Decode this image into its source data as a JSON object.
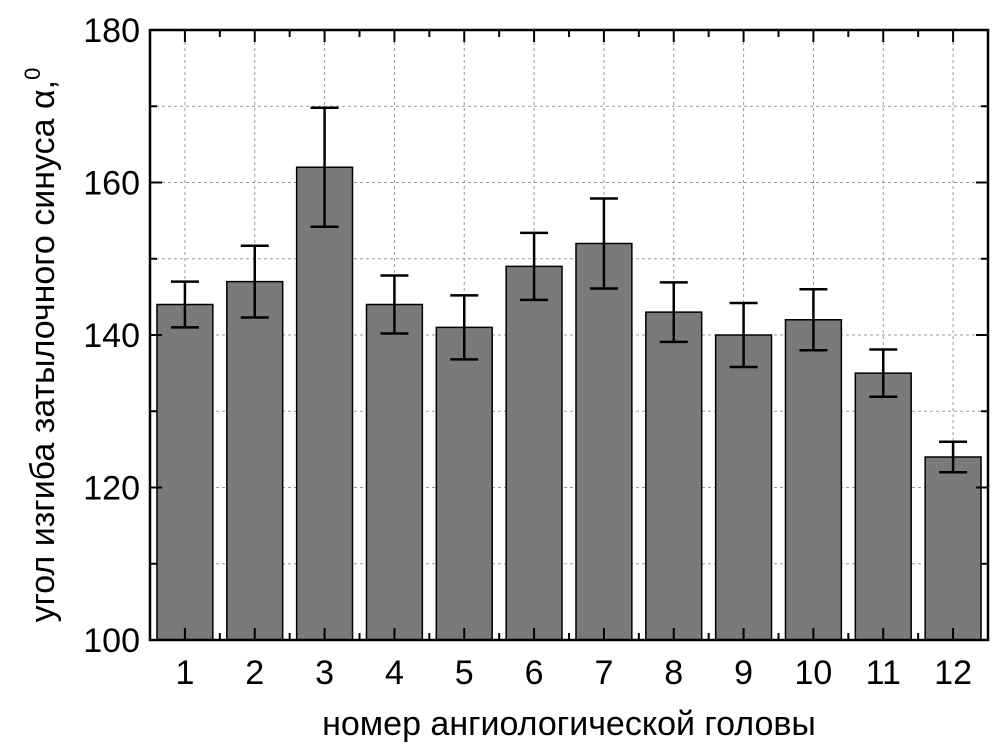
{
  "chart_data": {
    "type": "bar",
    "categories": [
      "1",
      "2",
      "3",
      "4",
      "5",
      "6",
      "7",
      "8",
      "9",
      "10",
      "11",
      "12"
    ],
    "values": [
      144,
      147,
      162,
      144,
      141,
      149,
      152,
      143,
      140,
      142,
      135,
      124
    ],
    "errors": [
      3,
      4.7,
      7.8,
      3.8,
      4.2,
      4.4,
      5.9,
      3.9,
      4.2,
      4.0,
      3.1,
      2.0
    ],
    "xlabel": "номер ангиологической головы",
    "ylabel": "угол изгиба затылочного синуса α,",
    "ylabel_superscript": "0",
    "ylim": [
      100,
      180
    ],
    "yticks": [
      100,
      120,
      140,
      160,
      180
    ],
    "grid": true,
    "bar_color": "#7a7a7a"
  }
}
